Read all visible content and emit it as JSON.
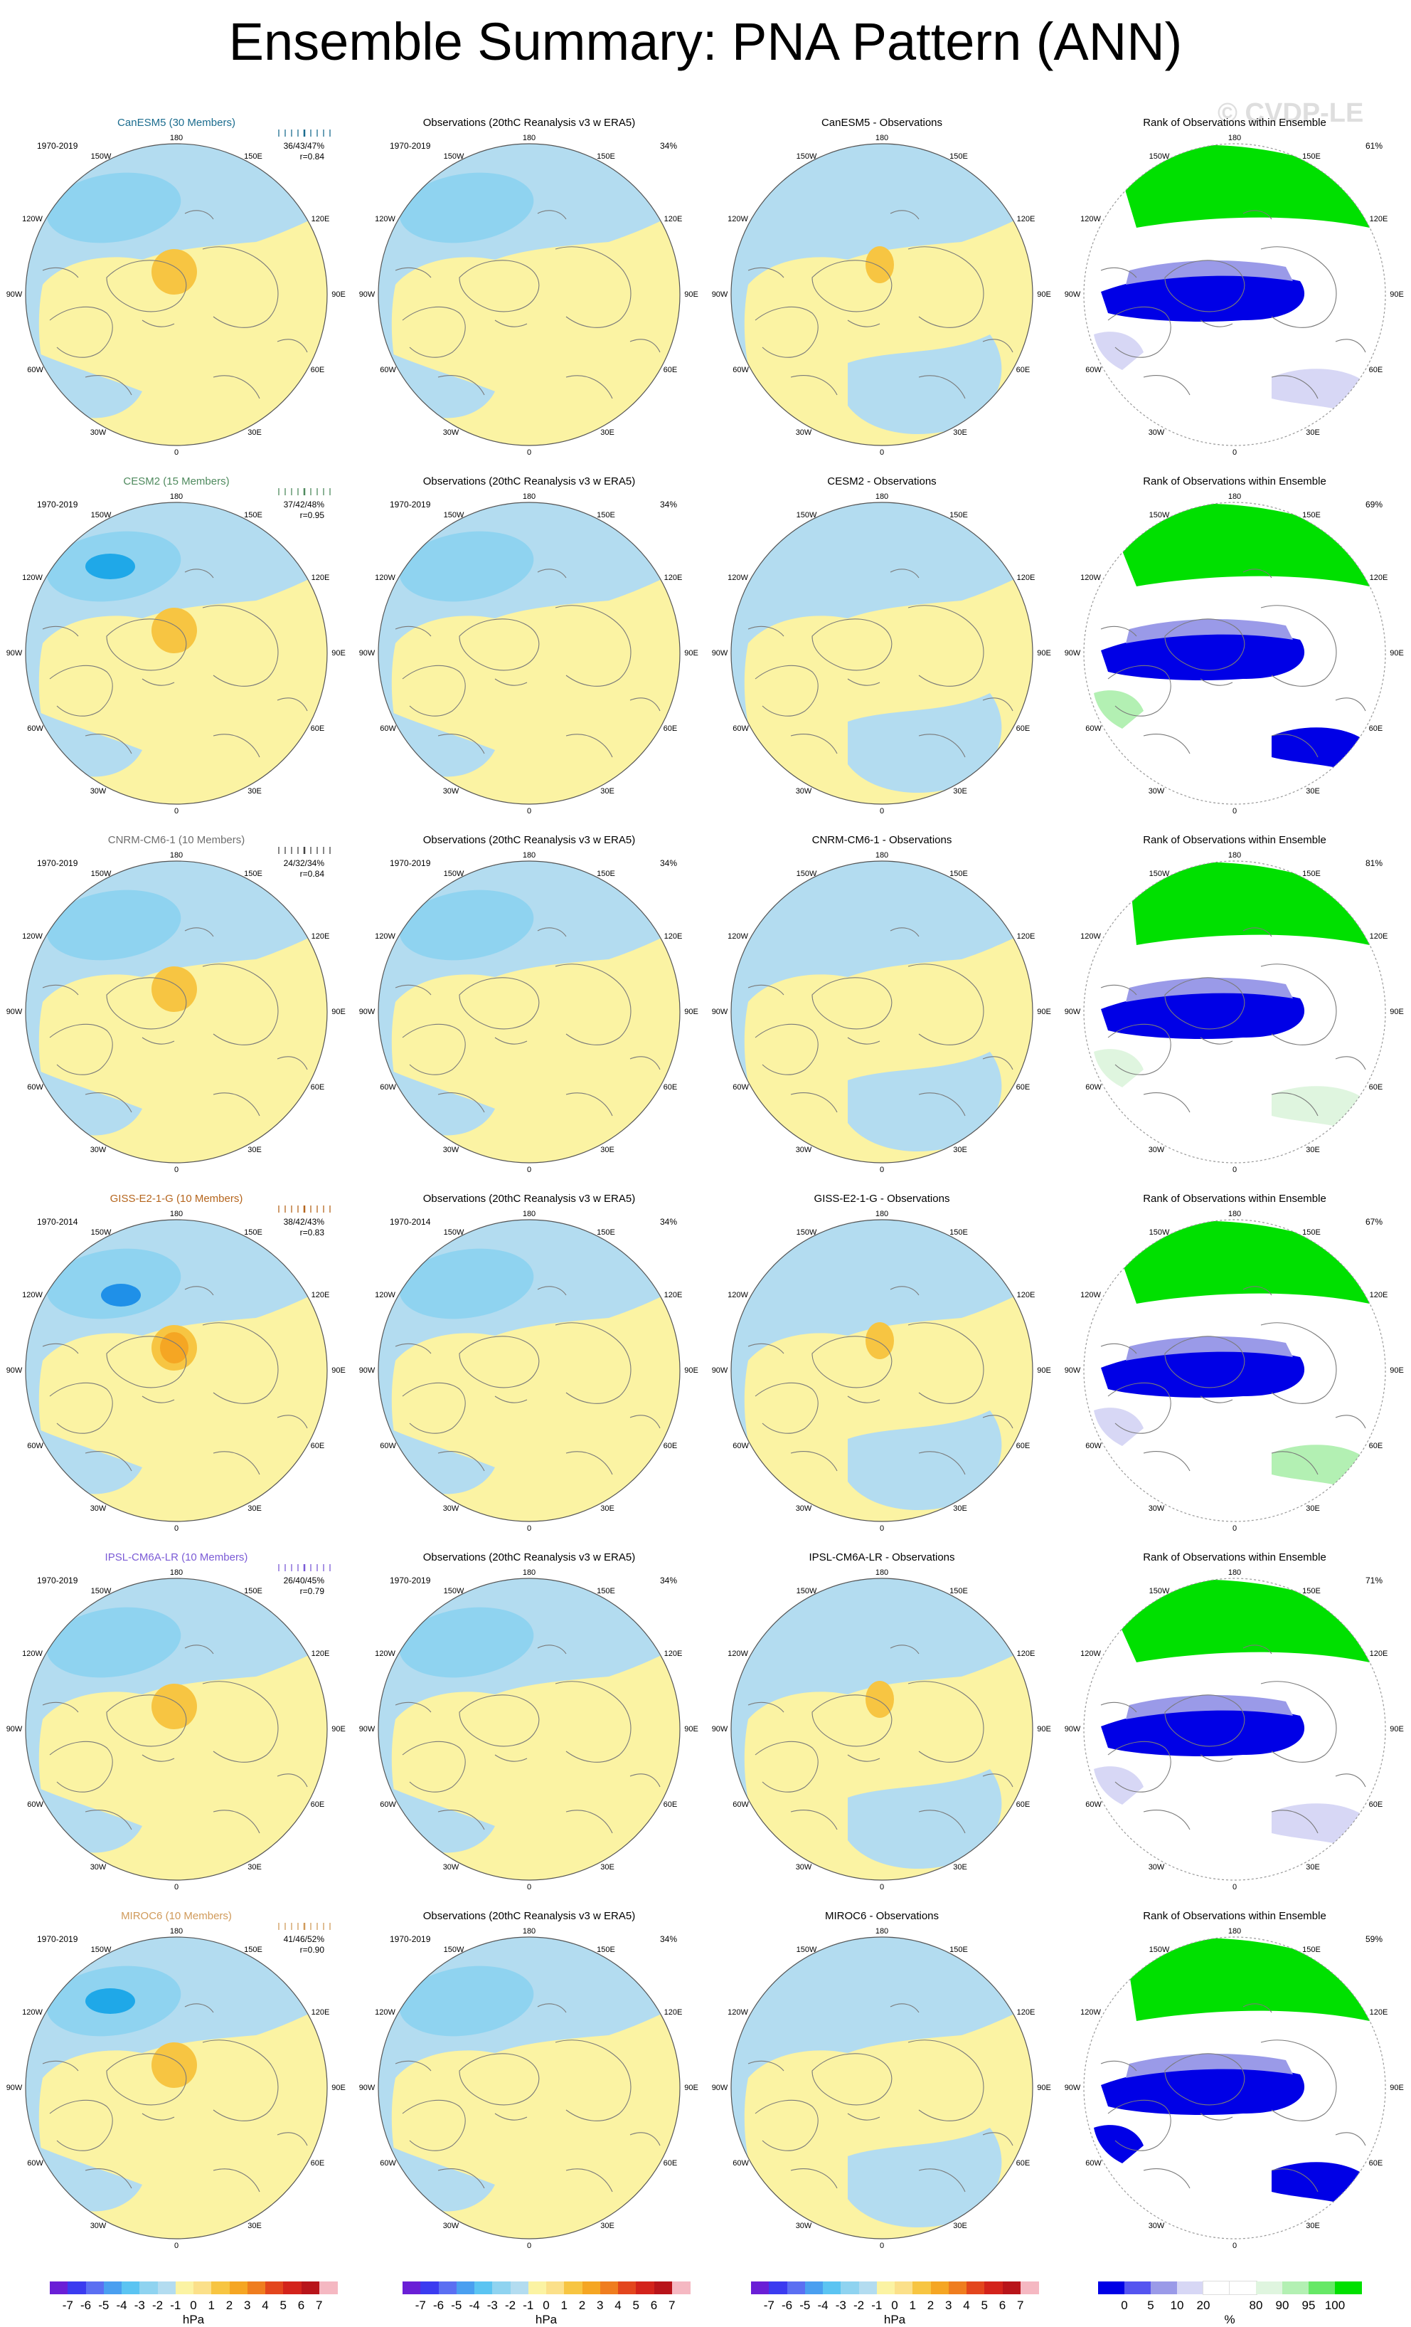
{
  "title": "Ensemble Summary: PNA Pattern (ANN)",
  "watermark": "© CVDP-LE",
  "column_titles": {
    "obs": "Observations (20thC Reanalysis v3 w ERA5)",
    "rank": "Rank of Observations within Ensemble"
  },
  "degree_labels": {
    "top": "180",
    "bottom": "0",
    "ul": "150W",
    "ur": "150E",
    "ml_up": "120W",
    "mr_up": "120E",
    "left": "90W",
    "right": "90E",
    "ml_dn": "60W",
    "mr_dn": "60E",
    "ll": "30W",
    "lr": "30E"
  },
  "rows": [
    {
      "model_title": "CanESM5 (30 Members)",
      "model_color": "#1b6c8e",
      "diff_title": "CanESM5 - Observations",
      "model_period": "1970-2019",
      "obs_period": "1970-2019",
      "stats": "36/43/47%",
      "r": "r=0.84",
      "obs_pct": "34%",
      "rank_pct": "61%",
      "bar_color": "#1b6c8e",
      "variant": 1
    },
    {
      "model_title": "CESM2 (15 Members)",
      "model_color": "#4f8a5e",
      "diff_title": "CESM2 - Observations",
      "model_period": "1970-2019",
      "obs_period": "1970-2019",
      "stats": "37/42/48%",
      "r": "r=0.95",
      "obs_pct": "34%",
      "rank_pct": "69%",
      "bar_color": "#4f8a5e",
      "variant": 2
    },
    {
      "model_title": "CNRM-CM6-1 (10 Members)",
      "model_color": "#6e6e6e",
      "diff_title": "CNRM-CM6-1 - Observations",
      "model_period": "1970-2019",
      "obs_period": "1970-2019",
      "stats": "24/32/34%",
      "r": "r=0.84",
      "obs_pct": "34%",
      "rank_pct": "81%",
      "bar_color": "#444444",
      "variant": 3
    },
    {
      "model_title": "GISS-E2-1-G (10 Members)",
      "model_color": "#b5651d",
      "diff_title": "GISS-E2-1-G - Observations",
      "model_period": "1970-2014",
      "obs_period": "1970-2014",
      "stats": "38/42/43%",
      "r": "r=0.83",
      "obs_pct": "34%",
      "rank_pct": "67%",
      "bar_color": "#b5651d",
      "variant": 4
    },
    {
      "model_title": "IPSL-CM6A-LR (10 Members)",
      "model_color": "#7b5bd6",
      "diff_title": "IPSL-CM6A-LR - Observations",
      "model_period": "1970-2019",
      "obs_period": "1970-2019",
      "stats": "26/40/45%",
      "r": "r=0.79",
      "obs_pct": "34%",
      "rank_pct": "71%",
      "bar_color": "#7b5bd6",
      "variant": 5
    },
    {
      "model_title": "MIROC6 (10 Members)",
      "model_color": "#d09a5a",
      "diff_title": "MIROC6 - Observations",
      "model_period": "1970-2019",
      "obs_period": "1970-2019",
      "stats": "41/46/52%",
      "r": "r=0.90",
      "obs_pct": "34%",
      "rank_pct": "59%",
      "bar_color": "#d09a5a",
      "variant": 6
    }
  ],
  "colorbar_hpa": {
    "colors": [
      "#6a1fd6",
      "#3b3bf0",
      "#5b6ff2",
      "#4a9ff0",
      "#5bc4f2",
      "#8fd3f0",
      "#b3dcf0",
      "#fbf3a3",
      "#fbe08a",
      "#f7c542",
      "#f5a623",
      "#ef7d1f",
      "#e3461d",
      "#d3231b",
      "#b8141a",
      "#f5b8c2"
    ],
    "ticks": [
      "-7",
      "-6",
      "-5",
      "-4",
      "-3",
      "-2",
      "-1",
      "0",
      "1",
      "2",
      "3",
      "4",
      "5",
      "6",
      "7"
    ],
    "unit": "hPa"
  },
  "colorbar_rank": {
    "colors": [
      "#0000e6",
      "#5555f0",
      "#9a9ae8",
      "#d7d7f5",
      "#ffffff",
      "#ffffff",
      "#dff5df",
      "#b3f0b3",
      "#66e866",
      "#00e000"
    ],
    "ticks": [
      "0",
      "5",
      "10",
      "20",
      "80",
      "90",
      "95",
      "100"
    ],
    "unit": "%"
  }
}
